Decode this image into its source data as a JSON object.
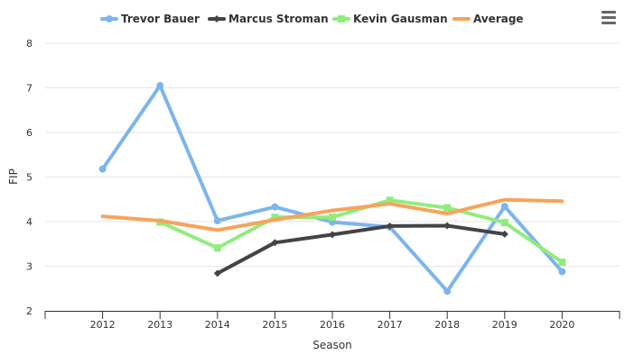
{
  "menu": {
    "icon": "hamburger-menu-icon"
  },
  "chart_data": {
    "type": "line",
    "xlabel": "Season",
    "ylabel": "FIP",
    "categories": [
      "2012",
      "2013",
      "2014",
      "2015",
      "2016",
      "2017",
      "2018",
      "2019",
      "2020"
    ],
    "yticks": [
      "2",
      "3",
      "4",
      "5",
      "6",
      "7",
      "8"
    ],
    "ylim": [
      2,
      8
    ],
    "grid": true,
    "legend_position": "top",
    "series": [
      {
        "name": "Trevor Bauer",
        "color": "#7cb5ec",
        "marker": "circle",
        "values": [
          5.18,
          7.05,
          4.02,
          4.33,
          3.99,
          3.88,
          2.44,
          4.34,
          2.88
        ]
      },
      {
        "name": "Marcus Stroman",
        "color": "#434348",
        "marker": "diamond",
        "values": [
          null,
          null,
          2.84,
          3.53,
          3.71,
          3.9,
          3.91,
          3.72,
          null
        ]
      },
      {
        "name": "Kevin Gausman",
        "color": "#90ed7d",
        "marker": "square",
        "values": [
          null,
          3.99,
          3.41,
          4.1,
          4.1,
          4.48,
          4.31,
          3.98,
          3.09
        ]
      },
      {
        "name": "Average",
        "color": "#f7a35c",
        "marker": "none",
        "values": [
          4.12,
          4.02,
          3.81,
          4.04,
          4.25,
          4.4,
          4.18,
          4.49,
          4.46
        ]
      }
    ]
  }
}
